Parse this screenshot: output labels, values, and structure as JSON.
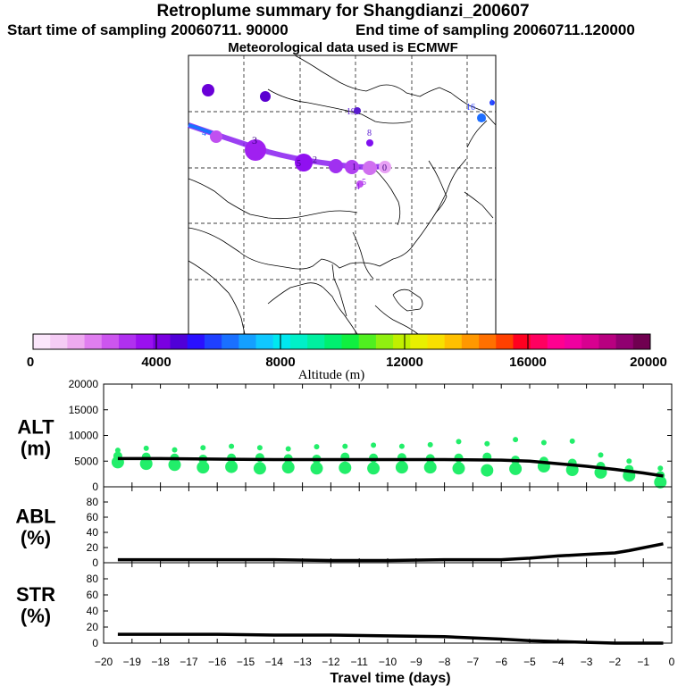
{
  "header": {
    "title": "Retroplume summary for Shangdianzi_200607",
    "start_time": "Start time of sampling 20060711. 90000",
    "end_time": "End time of sampling 20060711.120000",
    "met_data": "Meteorological data used is ECMWF"
  },
  "map_labels": [
    {
      "text": "1",
      "day": -20,
      "color": "#1f6fff"
    },
    {
      "text": "16",
      "day": -16,
      "color": "#2a3cff"
    },
    {
      "text": "16",
      "day": -16,
      "color": "#1f6fff"
    },
    {
      "text": "19",
      "day": -19,
      "color": "#5a1bd0"
    },
    {
      "text": "8",
      "day": -8,
      "color": "#5a1bd0"
    },
    {
      "text": "3",
      "day": -3,
      "color": "#7a10e0"
    },
    {
      "text": "4",
      "day": -4,
      "color": "#1f6fff"
    },
    {
      "text": "5",
      "day": -5,
      "color": "#9a20e8"
    },
    {
      "text": "2",
      "day": -2,
      "color": "#9a20e8"
    },
    {
      "text": "1",
      "day": -1,
      "color": "#9a20e8"
    },
    {
      "text": "0",
      "day": 0,
      "color": "#9a20e8"
    },
    {
      "text": "4",
      "day": -4,
      "color": "#9a20e8"
    },
    {
      "text": "5",
      "day": -5,
      "color": "#9a20e8"
    }
  ],
  "colorbar": {
    "label": "Altitude (m)",
    "ticks": [
      "0",
      "4000",
      "8000",
      "12000",
      "16000",
      "20000"
    ],
    "colors": [
      "#fbe6fb",
      "#f5ccf5",
      "#eeaaf0",
      "#e07ef0",
      "#cc55ee",
      "#b030f0",
      "#9a10f0",
      "#7a00e0",
      "#5000d8",
      "#2a10ff",
      "#1f40ff",
      "#1a70ff",
      "#14a0ff",
      "#10c8ff",
      "#00e8f0",
      "#00f0c8",
      "#00f0a0",
      "#00f070",
      "#10f040",
      "#50f020",
      "#90f010",
      "#c0f000",
      "#e8f000",
      "#f8e000",
      "#ffc000",
      "#ff9800",
      "#ff7000",
      "#ff4000",
      "#ff0020",
      "#ff0060",
      "#ff0090",
      "#f000a0",
      "#d80090",
      "#b80080",
      "#900070",
      "#700050"
    ]
  },
  "chart_data": [
    {
      "type": "scatter+line",
      "title": "ALT (m)",
      "ylabel_top": "ALT",
      "ylabel_bottom": "(m)",
      "ylim": [
        0,
        20000
      ],
      "yticks": [
        "0",
        "5000",
        "10000",
        "15000",
        "20000"
      ],
      "line": {
        "x": [
          -19.5,
          -18,
          -16,
          -14,
          -12,
          -10,
          -8,
          -6,
          -5,
          -4,
          -3,
          -2,
          -1,
          -0.3
        ],
        "y": [
          5500,
          5500,
          5400,
          5300,
          5300,
          5300,
          5300,
          5200,
          5000,
          4500,
          4000,
          3400,
          2700,
          2100
        ]
      },
      "points": [
        {
          "x": -19.5,
          "y": [
            4800,
            6000,
            7100
          ]
        },
        {
          "x": -18.5,
          "y": [
            4500,
            5800,
            7500
          ]
        },
        {
          "x": -17.5,
          "y": [
            4300,
            5600,
            7200
          ]
        },
        {
          "x": -16.5,
          "y": [
            3800,
            5400,
            7600
          ]
        },
        {
          "x": -15.5,
          "y": [
            3900,
            5600,
            7900
          ]
        },
        {
          "x": -14.5,
          "y": [
            3600,
            5700,
            7600
          ]
        },
        {
          "x": -13.5,
          "y": [
            3800,
            5500,
            7400
          ]
        },
        {
          "x": -12.5,
          "y": [
            3600,
            5400,
            7800
          ]
        },
        {
          "x": -11.5,
          "y": [
            3700,
            5800,
            7900
          ]
        },
        {
          "x": -10.5,
          "y": [
            3600,
            5600,
            8100
          ]
        },
        {
          "x": -9.5,
          "y": [
            3800,
            5700,
            7900
          ]
        },
        {
          "x": -8.5,
          "y": [
            3800,
            5500,
            8200
          ]
        },
        {
          "x": -7.5,
          "y": [
            3600,
            5600,
            8800
          ]
        },
        {
          "x": -6.5,
          "y": [
            3200,
            5800,
            8400
          ]
        },
        {
          "x": -5.5,
          "y": [
            3500,
            5200,
            9200
          ]
        },
        {
          "x": -4.5,
          "y": [
            4000,
            5000,
            8600
          ]
        },
        {
          "x": -3.5,
          "y": [
            3300,
            4600,
            8900
          ]
        },
        {
          "x": -2.5,
          "y": [
            2800,
            4000,
            6200
          ]
        },
        {
          "x": -1.5,
          "y": [
            2200,
            3400,
            5000
          ]
        },
        {
          "x": -0.4,
          "y": [
            900,
            2200,
            3600
          ]
        }
      ]
    },
    {
      "type": "line",
      "title": "ABL (%)",
      "ylabel_top": "ABL",
      "ylabel_bottom": "(%)",
      "ylim": [
        0,
        100
      ],
      "yticks": [
        "0",
        "20",
        "40",
        "60",
        "80"
      ],
      "line": {
        "x": [
          -19.5,
          -16,
          -14,
          -12,
          -10,
          -8,
          -6,
          -5,
          -4,
          -3,
          -2,
          -1.5,
          -0.3
        ],
        "y": [
          4,
          4,
          4,
          3,
          3,
          4,
          4,
          6,
          9,
          11,
          13,
          16,
          25
        ]
      }
    },
    {
      "type": "line",
      "title": "STR (%)",
      "ylabel_top": "STR",
      "ylabel_bottom": "(%)",
      "ylim": [
        0,
        100
      ],
      "yticks": [
        "0",
        "20",
        "40",
        "60",
        "80"
      ],
      "line": {
        "x": [
          -19.5,
          -16,
          -14,
          -12,
          -10,
          -8,
          -6,
          -5,
          -4,
          -3,
          -2,
          -1,
          -0.3
        ],
        "y": [
          11,
          11,
          10,
          10,
          9,
          8,
          5,
          3,
          2,
          1,
          0,
          0,
          0
        ]
      }
    }
  ],
  "xaxis": {
    "label": "Travel time (days)",
    "xlim": [
      -20,
      0
    ],
    "ticks": [
      "−20",
      "−19",
      "−18",
      "−17",
      "−16",
      "−15",
      "−14",
      "−13",
      "−12",
      "−11",
      "−10",
      "−9",
      "−8",
      "−7",
      "−6",
      "−5",
      "−4",
      "−3",
      "−2",
      "−1",
      "0"
    ]
  }
}
